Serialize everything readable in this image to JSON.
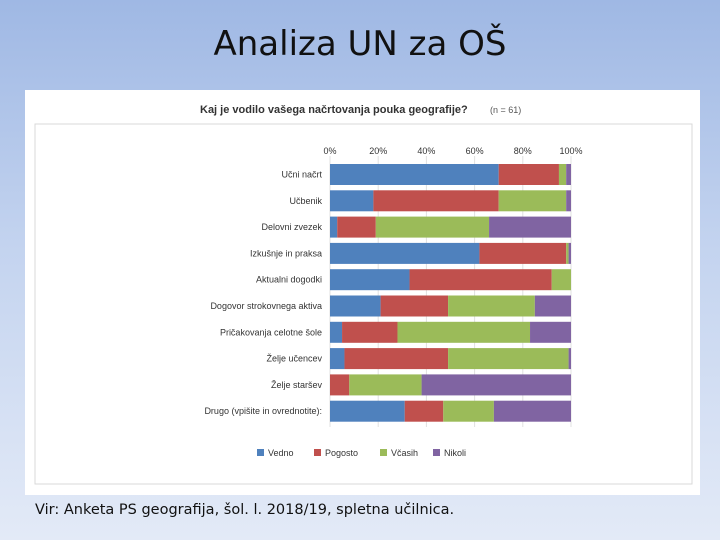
{
  "slide": {
    "title": "Analiza UN za OŠ",
    "source": "Vir: Anketa PS geografija, šol. l. 2018/19, spletna učilnica."
  },
  "chart_data": {
    "type": "bar",
    "orientation": "horizontal",
    "stacked": true,
    "percent_stacked": true,
    "title": "Kaj je vodilo vašega načrtovanja pouka geografije?",
    "subtitle": "(n = 61)",
    "xlabel": "",
    "ylabel": "",
    "xlim": [
      0,
      100
    ],
    "x_ticks": [
      "0%",
      "20%",
      "40%",
      "60%",
      "80%",
      "100%"
    ],
    "grid": true,
    "legend_position": "bottom",
    "categories": [
      "Učni načrt",
      "Učbenik",
      "Delovni zvezek",
      "Izkušnje in praksa",
      "Aktualni dogodki",
      "Dogovor strokovnega aktiva",
      "Pričakovanja celotne šole",
      "Želje učencev",
      "Želje staršev",
      "Drugo (vpišite in ovrednotite):"
    ],
    "series": [
      {
        "name": "Vedno",
        "color": "#4f81bd",
        "values": [
          70,
          18,
          3,
          62,
          33,
          21,
          5,
          6,
          0,
          31
        ]
      },
      {
        "name": "Pogosto",
        "color": "#c0504d",
        "values": [
          25,
          52,
          16,
          36,
          59,
          28,
          23,
          43,
          8,
          16
        ]
      },
      {
        "name": "Včasih",
        "color": "#9bbb59",
        "values": [
          3,
          28,
          47,
          1,
          8,
          36,
          55,
          50,
          30,
          21
        ]
      },
      {
        "name": "Nikoli",
        "color": "#8064a2",
        "values": [
          2,
          2,
          34,
          1,
          0,
          15,
          17,
          1,
          62,
          32
        ]
      }
    ]
  }
}
